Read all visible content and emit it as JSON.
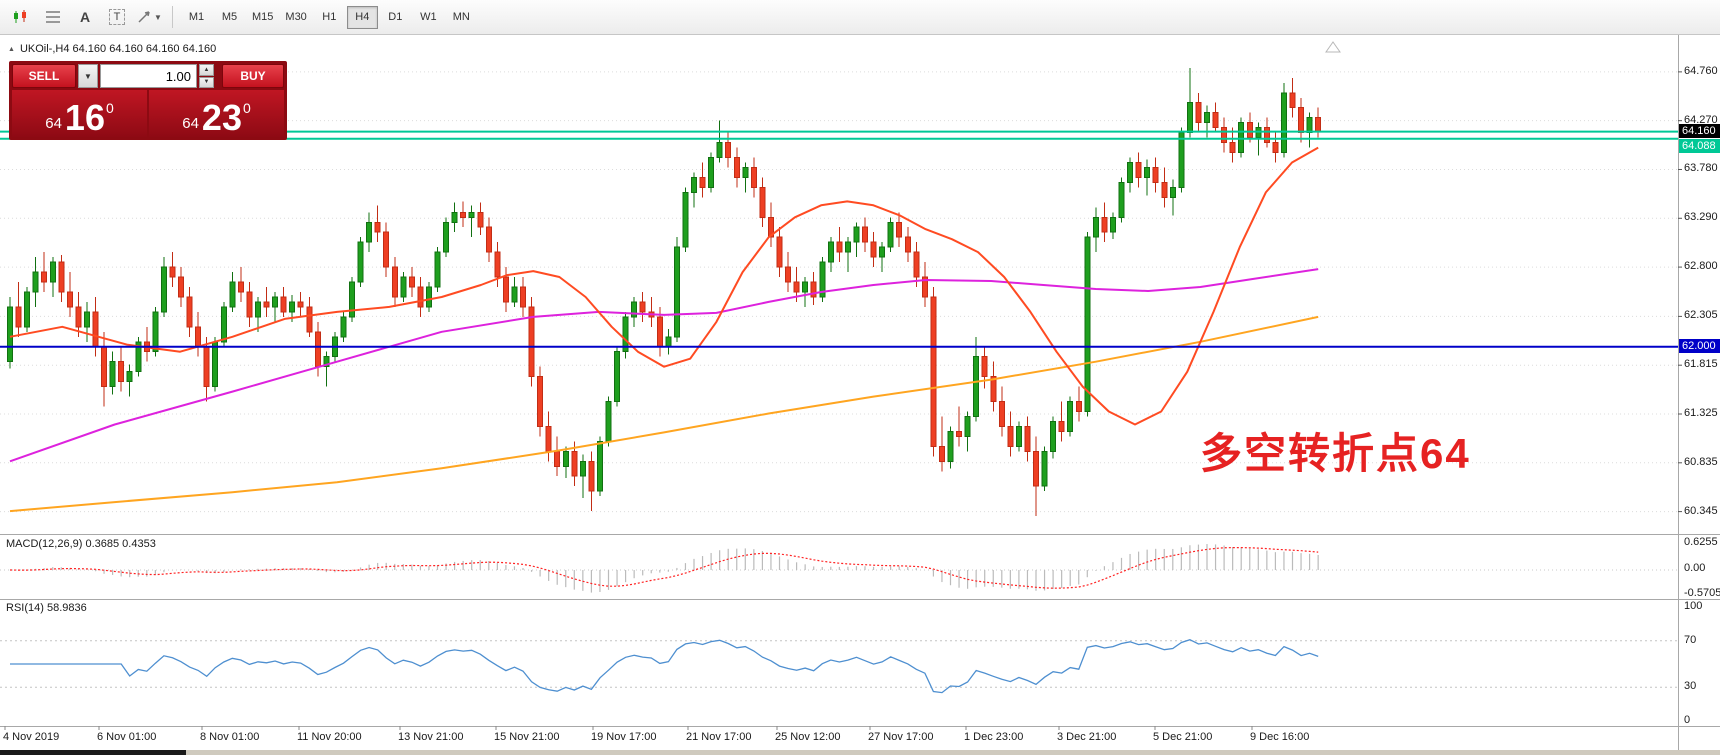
{
  "toolbar": {
    "icons": [
      {
        "name": "candlestick-chart-icon"
      },
      {
        "name": "grid-icon"
      },
      {
        "name": "text-label-icon",
        "label": "A"
      },
      {
        "name": "text-box-icon",
        "label": "T"
      },
      {
        "name": "draw-tool-icon"
      }
    ],
    "timeframes": [
      {
        "label": "M1"
      },
      {
        "label": "M5"
      },
      {
        "label": "M15"
      },
      {
        "label": "M30"
      },
      {
        "label": "H1"
      },
      {
        "label": "H4",
        "active": true
      },
      {
        "label": "D1"
      },
      {
        "label": "W1"
      },
      {
        "label": "MN"
      }
    ],
    "active_timeframe": "H4"
  },
  "chart": {
    "symbol_info": "UKOil-,H4  64.160 64.160 64.160 64.160",
    "trade_panel": {
      "sell_label": "SELL",
      "buy_label": "BUY",
      "volume": "1.00",
      "bid": {
        "small": "64",
        "big": "16",
        "sup": "0"
      },
      "ask": {
        "small": "64",
        "big": "23",
        "sup": "0"
      }
    },
    "annotation": "多空转折点64",
    "badges": {
      "last_price": "64.160",
      "bid_line": "64.088",
      "level_line": "62.000"
    },
    "price_axis": [
      "64.760",
      "64.270",
      "63.780",
      "63.290",
      "62.800",
      "62.305",
      "61.815",
      "61.325",
      "60.835",
      "60.345"
    ]
  },
  "macd_panel": {
    "label": "MACD(12,26,9) 0.3685 0.4353",
    "axis": [
      "0.6255",
      "0.00",
      "-0.5705"
    ]
  },
  "rsi_panel": {
    "label": "RSI(14) 58.9836",
    "axis": [
      "100",
      "70",
      "30",
      "0"
    ]
  },
  "time_axis": [
    "4 Nov 2019",
    "6 Nov 01:00",
    "8 Nov 01:00",
    "11 Nov 20:00",
    "13 Nov 21:00",
    "15 Nov 21:00",
    "19 Nov 17:00",
    "21 Nov 17:00",
    "25 Nov 12:00",
    "27 Nov 17:00",
    "1 Dec 23:00",
    "3 Dec 21:00",
    "5 Dec 21:00",
    "9 Dec 16:00"
  ],
  "colors": {
    "candle_up": "#1E9F1E",
    "candle_up_dark": "#117011",
    "candle_down": "#EE3F23",
    "candle_down_dark": "#C22D15",
    "ma_magenta": "#DD22DD",
    "ma_orange": "#FFA520",
    "ma_red": "#FF4B22",
    "macd_hist": "#BBBBBB",
    "macd_signal": "#FF2222",
    "rsi_line": "#4E8FD0",
    "teal": "#00C896",
    "blue": "#0000C8",
    "grid": "#DCDCDC",
    "annotation": "#E62222",
    "accent_red": "#D8232A"
  },
  "chart_data": {
    "type": "candlestick",
    "symbol": "UKOil-",
    "timeframe": "H4",
    "y_axis": {
      "min": 60.13,
      "max": 65.08
    },
    "grid": true,
    "ohlc": [
      [
        61.85,
        62.5,
        61.78,
        62.4
      ],
      [
        62.4,
        62.65,
        62.1,
        62.2
      ],
      [
        62.2,
        62.6,
        62.15,
        62.55
      ],
      [
        62.55,
        62.9,
        62.4,
        62.75
      ],
      [
        62.75,
        62.95,
        62.55,
        62.65
      ],
      [
        62.65,
        62.9,
        62.5,
        62.85
      ],
      [
        62.85,
        62.92,
        62.45,
        62.55
      ],
      [
        62.55,
        62.75,
        62.3,
        62.4
      ],
      [
        62.4,
        62.55,
        62.1,
        62.2
      ],
      [
        62.2,
        62.45,
        62.05,
        62.35
      ],
      [
        62.35,
        62.5,
        61.9,
        62.0
      ],
      [
        62.0,
        62.15,
        61.4,
        61.6
      ],
      [
        61.6,
        61.95,
        61.52,
        61.85
      ],
      [
        61.85,
        62.0,
        61.55,
        61.65
      ],
      [
        61.65,
        61.82,
        61.5,
        61.75
      ],
      [
        61.75,
        62.1,
        61.7,
        62.05
      ],
      [
        62.05,
        62.2,
        61.85,
        61.95
      ],
      [
        61.95,
        62.4,
        61.9,
        62.35
      ],
      [
        62.35,
        62.9,
        62.3,
        62.8
      ],
      [
        62.8,
        62.95,
        62.6,
        62.7
      ],
      [
        62.7,
        62.8,
        62.4,
        62.5
      ],
      [
        62.5,
        62.6,
        62.1,
        62.2
      ],
      [
        62.2,
        62.35,
        61.9,
        62.0
      ],
      [
        62.0,
        62.1,
        61.45,
        61.6
      ],
      [
        61.6,
        62.1,
        61.55,
        62.05
      ],
      [
        62.05,
        62.45,
        62.0,
        62.4
      ],
      [
        62.4,
        62.75,
        62.35,
        62.65
      ],
      [
        62.65,
        62.8,
        62.45,
        62.55
      ],
      [
        62.55,
        62.65,
        62.2,
        62.3
      ],
      [
        62.3,
        62.5,
        62.15,
        62.45
      ],
      [
        62.45,
        62.6,
        62.3,
        62.4
      ],
      [
        62.4,
        62.55,
        62.25,
        62.5
      ],
      [
        62.5,
        62.6,
        62.3,
        62.35
      ],
      [
        62.35,
        62.52,
        62.25,
        62.45
      ],
      [
        62.45,
        62.55,
        62.3,
        62.4
      ],
      [
        62.4,
        62.5,
        62.1,
        62.15
      ],
      [
        62.15,
        62.25,
        61.7,
        61.8
      ],
      [
        61.8,
        61.95,
        61.6,
        61.9
      ],
      [
        61.9,
        62.15,
        61.85,
        62.1
      ],
      [
        62.1,
        62.35,
        62.05,
        62.3
      ],
      [
        62.3,
        62.7,
        62.25,
        62.65
      ],
      [
        62.65,
        63.1,
        62.6,
        63.05
      ],
      [
        63.05,
        63.35,
        62.95,
        63.25
      ],
      [
        63.25,
        63.42,
        63.05,
        63.15
      ],
      [
        63.15,
        63.25,
        62.7,
        62.8
      ],
      [
        62.8,
        62.9,
        62.4,
        62.5
      ],
      [
        62.5,
        62.75,
        62.45,
        62.7
      ],
      [
        62.7,
        62.8,
        62.5,
        62.6
      ],
      [
        62.6,
        62.7,
        62.3,
        62.4
      ],
      [
        62.4,
        62.65,
        62.35,
        62.6
      ],
      [
        62.6,
        63.0,
        62.55,
        62.95
      ],
      [
        62.95,
        63.3,
        62.9,
        63.25
      ],
      [
        63.25,
        63.45,
        63.15,
        63.35
      ],
      [
        63.35,
        63.46,
        63.2,
        63.3
      ],
      [
        63.3,
        63.42,
        63.1,
        63.35
      ],
      [
        63.35,
        63.45,
        63.12,
        63.2
      ],
      [
        63.2,
        63.3,
        62.85,
        62.95
      ],
      [
        62.95,
        63.05,
        62.6,
        62.7
      ],
      [
        62.7,
        62.8,
        62.35,
        62.45
      ],
      [
        62.45,
        62.7,
        62.4,
        62.6
      ],
      [
        62.6,
        62.7,
        62.3,
        62.4
      ],
      [
        62.4,
        62.5,
        61.6,
        61.7
      ],
      [
        61.7,
        61.8,
        61.1,
        61.2
      ],
      [
        61.2,
        61.35,
        60.85,
        60.95
      ],
      [
        60.95,
        61.1,
        60.7,
        60.8
      ],
      [
        60.8,
        61.0,
        60.68,
        60.95
      ],
      [
        60.95,
        61.05,
        60.6,
        60.7
      ],
      [
        60.7,
        60.92,
        60.48,
        60.85
      ],
      [
        60.85,
        60.95,
        60.35,
        60.55
      ],
      [
        60.55,
        61.1,
        60.5,
        61.05
      ],
      [
        61.05,
        61.5,
        61.0,
        61.45
      ],
      [
        61.45,
        62.0,
        61.4,
        61.95
      ],
      [
        61.95,
        62.35,
        61.88,
        62.3
      ],
      [
        62.3,
        62.5,
        62.2,
        62.45
      ],
      [
        62.45,
        62.55,
        62.25,
        62.35
      ],
      [
        62.35,
        62.5,
        62.2,
        62.3
      ],
      [
        62.3,
        62.4,
        61.9,
        62.0
      ],
      [
        62.0,
        62.18,
        61.92,
        62.1
      ],
      [
        62.1,
        63.1,
        62.05,
        63.0
      ],
      [
        63.0,
        63.6,
        62.95,
        63.55
      ],
      [
        63.55,
        63.75,
        63.4,
        63.7
      ],
      [
        63.7,
        63.85,
        63.5,
        63.6
      ],
      [
        63.6,
        63.95,
        63.55,
        63.9
      ],
      [
        63.9,
        64.27,
        63.85,
        64.05
      ],
      [
        64.05,
        64.15,
        63.8,
        63.9
      ],
      [
        63.9,
        64.0,
        63.6,
        63.7
      ],
      [
        63.7,
        63.85,
        63.55,
        63.8
      ],
      [
        63.8,
        63.9,
        63.5,
        63.6
      ],
      [
        63.6,
        63.7,
        63.2,
        63.3
      ],
      [
        63.3,
        63.45,
        63.0,
        63.1
      ],
      [
        63.1,
        63.2,
        62.7,
        62.8
      ],
      [
        62.8,
        62.95,
        62.55,
        62.65
      ],
      [
        62.65,
        62.8,
        62.45,
        62.55
      ],
      [
        62.55,
        62.7,
        62.4,
        62.65
      ],
      [
        62.65,
        62.75,
        62.42,
        62.5
      ],
      [
        62.5,
        62.9,
        62.45,
        62.85
      ],
      [
        62.85,
        63.1,
        62.75,
        63.05
      ],
      [
        63.05,
        63.2,
        62.85,
        62.95
      ],
      [
        62.95,
        63.1,
        62.75,
        63.05
      ],
      [
        63.05,
        63.25,
        62.9,
        63.2
      ],
      [
        63.2,
        63.3,
        62.95,
        63.05
      ],
      [
        63.05,
        63.15,
        62.8,
        62.9
      ],
      [
        62.9,
        63.05,
        62.75,
        63.0
      ],
      [
        63.0,
        63.3,
        62.95,
        63.25
      ],
      [
        63.25,
        63.35,
        63.0,
        63.1
      ],
      [
        63.1,
        63.2,
        62.85,
        62.95
      ],
      [
        62.95,
        63.05,
        62.6,
        62.7
      ],
      [
        62.7,
        62.85,
        62.4,
        62.5
      ],
      [
        62.5,
        62.6,
        60.9,
        61.0
      ],
      [
        61.0,
        61.3,
        60.75,
        60.85
      ],
      [
        60.85,
        61.2,
        60.78,
        61.15
      ],
      [
        61.15,
        61.4,
        61.0,
        61.1
      ],
      [
        61.1,
        61.35,
        60.95,
        61.3
      ],
      [
        61.3,
        62.1,
        61.25,
        61.9
      ],
      [
        61.9,
        62.0,
        61.58,
        61.7
      ],
      [
        61.7,
        61.85,
        61.35,
        61.45
      ],
      [
        61.45,
        61.6,
        61.1,
        61.2
      ],
      [
        61.2,
        61.35,
        60.9,
        61.0
      ],
      [
        61.0,
        61.25,
        60.95,
        61.2
      ],
      [
        61.2,
        61.3,
        60.85,
        60.95
      ],
      [
        60.95,
        61.1,
        60.3,
        60.6
      ],
      [
        60.6,
        61.0,
        60.55,
        60.95
      ],
      [
        60.95,
        61.3,
        60.88,
        61.25
      ],
      [
        61.25,
        61.45,
        61.05,
        61.15
      ],
      [
        61.15,
        61.5,
        61.1,
        61.45
      ],
      [
        61.45,
        61.6,
        61.25,
        61.35
      ],
      [
        61.35,
        63.15,
        61.3,
        63.1
      ],
      [
        63.1,
        63.4,
        62.95,
        63.3
      ],
      [
        63.3,
        63.45,
        63.05,
        63.15
      ],
      [
        63.15,
        63.35,
        63.08,
        63.3
      ],
      [
        63.3,
        63.7,
        63.25,
        63.65
      ],
      [
        63.65,
        63.9,
        63.55,
        63.85
      ],
      [
        63.85,
        63.95,
        63.6,
        63.7
      ],
      [
        63.7,
        63.88,
        63.52,
        63.8
      ],
      [
        63.8,
        63.9,
        63.55,
        63.65
      ],
      [
        63.65,
        63.8,
        63.4,
        63.5
      ],
      [
        63.5,
        63.68,
        63.32,
        63.6
      ],
      [
        63.6,
        64.2,
        63.55,
        64.15
      ],
      [
        64.15,
        64.8,
        64.1,
        64.45
      ],
      [
        64.45,
        64.55,
        64.15,
        64.25
      ],
      [
        64.25,
        64.42,
        64.1,
        64.35
      ],
      [
        64.35,
        64.45,
        64.15,
        64.2
      ],
      [
        64.2,
        64.3,
        63.95,
        64.05
      ],
      [
        64.05,
        64.2,
        63.85,
        63.95
      ],
      [
        63.95,
        64.3,
        63.9,
        64.25
      ],
      [
        64.25,
        64.35,
        64.05,
        64.1
      ],
      [
        64.1,
        64.25,
        63.92,
        64.2
      ],
      [
        64.2,
        64.3,
        64.0,
        64.05
      ],
      [
        64.05,
        64.15,
        63.85,
        63.95
      ],
      [
        63.95,
        64.65,
        63.9,
        64.55
      ],
      [
        64.55,
        64.7,
        64.3,
        64.4
      ],
      [
        64.4,
        64.5,
        64.05,
        64.15
      ],
      [
        64.15,
        64.35,
        64.0,
        64.3
      ],
      [
        64.3,
        64.4,
        64.1,
        64.16
      ]
    ],
    "overlays": {
      "ma_magenta": [
        [
          0,
          60.85
        ],
        [
          0.08,
          61.22
        ],
        [
          0.17,
          61.55
        ],
        [
          0.25,
          61.85
        ],
        [
          0.33,
          62.15
        ],
        [
          0.4,
          62.3
        ],
        [
          0.45,
          62.35
        ],
        [
          0.5,
          62.32
        ],
        [
          0.54,
          62.34
        ],
        [
          0.58,
          62.45
        ],
        [
          0.62,
          62.55
        ],
        [
          0.66,
          62.62
        ],
        [
          0.7,
          62.67
        ],
        [
          0.75,
          62.66
        ],
        [
          0.79,
          62.62
        ],
        [
          0.83,
          62.58
        ],
        [
          0.87,
          62.56
        ],
        [
          0.91,
          62.6
        ],
        [
          0.95,
          62.68
        ],
        [
          1,
          62.78
        ]
      ],
      "ma_orange": [
        [
          0,
          60.35
        ],
        [
          0.08,
          60.44
        ],
        [
          0.17,
          60.54
        ],
        [
          0.25,
          60.64
        ],
        [
          0.33,
          60.78
        ],
        [
          0.42,
          60.96
        ],
        [
          0.5,
          61.14
        ],
        [
          0.58,
          61.33
        ],
        [
          0.66,
          61.5
        ],
        [
          0.75,
          61.67
        ],
        [
          0.83,
          61.85
        ],
        [
          0.91,
          62.05
        ],
        [
          1,
          62.3
        ]
      ],
      "ma_red": [
        [
          0,
          62.1
        ],
        [
          0.04,
          62.2
        ],
        [
          0.09,
          62.02
        ],
        [
          0.13,
          61.95
        ],
        [
          0.17,
          62.1
        ],
        [
          0.21,
          62.28
        ],
        [
          0.25,
          62.35
        ],
        [
          0.29,
          62.4
        ],
        [
          0.33,
          62.5
        ],
        [
          0.36,
          62.62
        ],
        [
          0.38,
          62.72
        ],
        [
          0.4,
          62.76
        ],
        [
          0.42,
          62.7
        ],
        [
          0.44,
          62.5
        ],
        [
          0.46,
          62.2
        ],
        [
          0.48,
          61.95
        ],
        [
          0.5,
          61.8
        ],
        [
          0.52,
          61.88
        ],
        [
          0.54,
          62.25
        ],
        [
          0.56,
          62.75
        ],
        [
          0.58,
          63.1
        ],
        [
          0.6,
          63.3
        ],
        [
          0.62,
          63.42
        ],
        [
          0.64,
          63.46
        ],
        [
          0.66,
          63.42
        ],
        [
          0.68,
          63.32
        ],
        [
          0.7,
          63.18
        ],
        [
          0.72,
          63.08
        ],
        [
          0.74,
          62.95
        ],
        [
          0.76,
          62.7
        ],
        [
          0.78,
          62.35
        ],
        [
          0.8,
          61.95
        ],
        [
          0.82,
          61.6
        ],
        [
          0.84,
          61.35
        ],
        [
          0.86,
          61.22
        ],
        [
          0.88,
          61.35
        ],
        [
          0.9,
          61.75
        ],
        [
          0.92,
          62.35
        ],
        [
          0.94,
          63.0
        ],
        [
          0.96,
          63.55
        ],
        [
          0.98,
          63.85
        ],
        [
          1,
          64.0
        ]
      ]
    },
    "hlines": [
      {
        "price": 64.16,
        "color_key": "teal"
      },
      {
        "price": 64.088,
        "color_key": "teal"
      },
      {
        "price": 62.0,
        "color_key": "blue"
      }
    ],
    "indicators": {
      "macd": {
        "params": [
          12,
          26,
          9
        ],
        "current_values": [
          0.3685,
          0.4353
        ],
        "axis_range": [
          -0.5705,
          0.6255
        ]
      },
      "rsi": {
        "period": 14,
        "current_value": 58.9836,
        "levels": [
          30,
          70
        ],
        "range": [
          0,
          100
        ]
      }
    }
  }
}
